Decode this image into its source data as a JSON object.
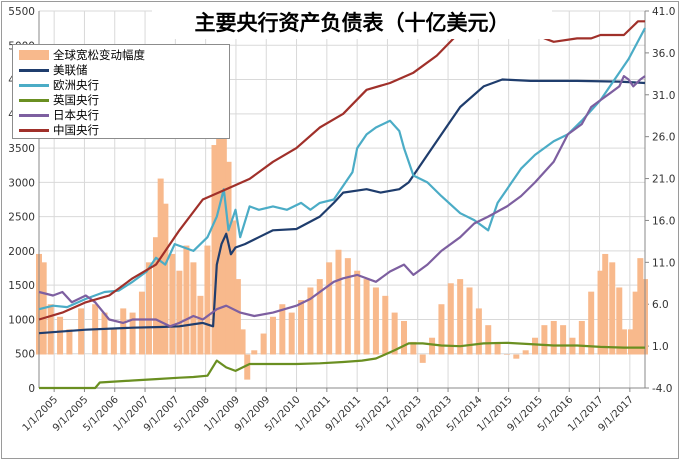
{
  "title": "主要央行资产负债表（十亿美元）",
  "chart_data": {
    "type": "line",
    "left_axis": {
      "min": 0,
      "max": 5500,
      "ticks": [
        0,
        500,
        1000,
        1500,
        2000,
        2500,
        3000,
        3500,
        4000,
        4500,
        5000,
        5500
      ]
    },
    "right_axis": {
      "min": -4.0,
      "max": 41.0,
      "ticks": [
        "-4.0",
        "1.0",
        "6.0",
        "11.0",
        "16.0",
        "21.0",
        "26.0",
        "31.0",
        "36.0",
        "41.0"
      ]
    },
    "x_ticks": [
      "1/1/2005",
      "9/1/2005",
      "5/1/2006",
      "1/1/2007",
      "9/1/2007",
      "5/1/2008",
      "1/1/2009",
      "9/1/2009",
      "5/1/2010",
      "1/1/2011",
      "9/1/2011",
      "5/1/2012",
      "1/1/2013",
      "9/1/2013",
      "5/1/2014",
      "1/1/2015",
      "9/1/2015",
      "5/1/2016",
      "1/1/2017",
      "9/1/2017"
    ],
    "x_range": [
      2005.0,
      2017.95
    ],
    "grid": true,
    "legend_position": "top-left",
    "legend": [
      {
        "name": "全球宽松变动幅度",
        "kind": "bar",
        "color": "#f8b98c"
      },
      {
        "name": "美联储",
        "kind": "line",
        "color": "#1f3d6d"
      },
      {
        "name": "欧洲央行",
        "kind": "line",
        "color": "#4bacc6"
      },
      {
        "name": "英国央行",
        "kind": "line",
        "color": "#6a8f21"
      },
      {
        "name": "日本央行",
        "kind": "line",
        "color": "#7d5fa0"
      },
      {
        "name": "中国央行",
        "kind": "line",
        "color": "#a0302a"
      }
    ],
    "bar_series": {
      "name": "全球宽松变动幅度",
      "axis": "right",
      "points": [
        [
          2005.0,
          12.0
        ],
        [
          2005.1,
          11.0
        ],
        [
          2005.25,
          6.0
        ],
        [
          2005.45,
          4.5
        ],
        [
          2005.65,
          3.0
        ],
        [
          2005.9,
          5.5
        ],
        [
          2006.2,
          6.0
        ],
        [
          2006.4,
          5.0
        ],
        [
          2006.6,
          3.0
        ],
        [
          2006.8,
          5.5
        ],
        [
          2007.0,
          5.0
        ],
        [
          2007.2,
          7.5
        ],
        [
          2007.35,
          11.0
        ],
        [
          2007.5,
          14.0
        ],
        [
          2007.6,
          21.0
        ],
        [
          2007.7,
          18.0
        ],
        [
          2007.85,
          12.0
        ],
        [
          2008.0,
          10.0
        ],
        [
          2008.15,
          13.0
        ],
        [
          2008.3,
          11.0
        ],
        [
          2008.45,
          7.0
        ],
        [
          2008.6,
          13.0
        ],
        [
          2008.75,
          25.0
        ],
        [
          2008.85,
          32.0
        ],
        [
          2008.95,
          27.5
        ],
        [
          2009.05,
          23.0
        ],
        [
          2009.15,
          16.0
        ],
        [
          2009.25,
          9.0
        ],
        [
          2009.35,
          3.0
        ],
        [
          2009.45,
          -3.0
        ],
        [
          2009.6,
          0.5
        ],
        [
          2009.8,
          2.5
        ],
        [
          2010.0,
          4.5
        ],
        [
          2010.2,
          6.0
        ],
        [
          2010.4,
          5.0
        ],
        [
          2010.6,
          6.5
        ],
        [
          2010.8,
          8.0
        ],
        [
          2011.0,
          9.0
        ],
        [
          2011.2,
          11.0
        ],
        [
          2011.4,
          12.5
        ],
        [
          2011.6,
          11.5
        ],
        [
          2011.8,
          10.0
        ],
        [
          2012.0,
          9.0
        ],
        [
          2012.2,
          8.0
        ],
        [
          2012.4,
          7.0
        ],
        [
          2012.6,
          5.0
        ],
        [
          2012.8,
          4.0
        ],
        [
          2013.0,
          1.5
        ],
        [
          2013.2,
          -1.0
        ],
        [
          2013.4,
          2.0
        ],
        [
          2013.6,
          6.0
        ],
        [
          2013.8,
          8.5
        ],
        [
          2014.0,
          9.0
        ],
        [
          2014.2,
          8.0
        ],
        [
          2014.4,
          5.5
        ],
        [
          2014.6,
          3.5
        ],
        [
          2014.8,
          1.5
        ],
        [
          2015.0,
          0.0
        ],
        [
          2015.2,
          -0.5
        ],
        [
          2015.4,
          0.5
        ],
        [
          2015.6,
          2.0
        ],
        [
          2015.8,
          3.5
        ],
        [
          2016.0,
          4.0
        ],
        [
          2016.2,
          3.5
        ],
        [
          2016.4,
          2.0
        ],
        [
          2016.6,
          4.0
        ],
        [
          2016.8,
          7.5
        ],
        [
          2017.0,
          10.0
        ],
        [
          2017.1,
          12.0
        ],
        [
          2017.25,
          11.0
        ],
        [
          2017.4,
          8.0
        ],
        [
          2017.5,
          3.0
        ],
        [
          2017.65,
          3.0
        ],
        [
          2017.75,
          7.5
        ],
        [
          2017.85,
          11.5
        ],
        [
          2017.95,
          9.0
        ]
      ]
    },
    "series": [
      {
        "name": "美联储",
        "axis": "left",
        "color": "#1f3d6d",
        "points": [
          [
            2005.0,
            800
          ],
          [
            2006.0,
            850
          ],
          [
            2007.0,
            880
          ],
          [
            2007.6,
            890
          ],
          [
            2008.0,
            900
          ],
          [
            2008.5,
            950
          ],
          [
            2008.72,
            900
          ],
          [
            2008.8,
            1800
          ],
          [
            2008.9,
            2100
          ],
          [
            2009.0,
            2250
          ],
          [
            2009.1,
            1950
          ],
          [
            2009.2,
            2050
          ],
          [
            2009.4,
            2100
          ],
          [
            2009.7,
            2200
          ],
          [
            2010.0,
            2300
          ],
          [
            2010.5,
            2320
          ],
          [
            2011.0,
            2500
          ],
          [
            2011.3,
            2700
          ],
          [
            2011.5,
            2850
          ],
          [
            2012.0,
            2900
          ],
          [
            2012.3,
            2850
          ],
          [
            2012.7,
            2900
          ],
          [
            2012.9,
            3000
          ],
          [
            2013.3,
            3400
          ],
          [
            2013.7,
            3800
          ],
          [
            2014.0,
            4100
          ],
          [
            2014.5,
            4400
          ],
          [
            2014.9,
            4500
          ],
          [
            2015.5,
            4480
          ],
          [
            2016.5,
            4480
          ],
          [
            2017.4,
            4470
          ],
          [
            2017.95,
            4450
          ]
        ]
      },
      {
        "name": "欧洲央行",
        "axis": "left",
        "color": "#4bacc6",
        "points": [
          [
            2005.0,
            1150
          ],
          [
            2005.3,
            1200
          ],
          [
            2005.6,
            1180
          ],
          [
            2006.0,
            1300
          ],
          [
            2006.4,
            1400
          ],
          [
            2006.7,
            1420
          ],
          [
            2007.0,
            1550
          ],
          [
            2007.3,
            1700
          ],
          [
            2007.5,
            1900
          ],
          [
            2007.7,
            1800
          ],
          [
            2007.9,
            2100
          ],
          [
            2008.1,
            2050
          ],
          [
            2008.3,
            2000
          ],
          [
            2008.6,
            2200
          ],
          [
            2008.8,
            2500
          ],
          [
            2008.95,
            2900
          ],
          [
            2009.05,
            2300
          ],
          [
            2009.2,
            2600
          ],
          [
            2009.3,
            2200
          ],
          [
            2009.5,
            2650
          ],
          [
            2009.7,
            2600
          ],
          [
            2010.0,
            2650
          ],
          [
            2010.3,
            2600
          ],
          [
            2010.6,
            2700
          ],
          [
            2010.8,
            2600
          ],
          [
            2011.0,
            2700
          ],
          [
            2011.3,
            2750
          ],
          [
            2011.5,
            2950
          ],
          [
            2011.7,
            3150
          ],
          [
            2011.8,
            3500
          ],
          [
            2011.9,
            3600
          ],
          [
            2012.0,
            3700
          ],
          [
            2012.2,
            3800
          ],
          [
            2012.5,
            3900
          ],
          [
            2012.7,
            3750
          ],
          [
            2012.8,
            3500
          ],
          [
            2013.0,
            3100
          ],
          [
            2013.3,
            3000
          ],
          [
            2013.6,
            2800
          ],
          [
            2014.0,
            2550
          ],
          [
            2014.3,
            2450
          ],
          [
            2014.6,
            2300
          ],
          [
            2014.8,
            2700
          ],
          [
            2015.0,
            2900
          ],
          [
            2015.3,
            3200
          ],
          [
            2015.6,
            3400
          ],
          [
            2016.0,
            3600
          ],
          [
            2016.3,
            3700
          ],
          [
            2016.6,
            3900
          ],
          [
            2017.0,
            4200
          ],
          [
            2017.3,
            4500
          ],
          [
            2017.6,
            4800
          ],
          [
            2017.95,
            5250
          ]
        ]
      },
      {
        "name": "英国央行",
        "axis": "left",
        "color": "#6a8f21",
        "points": [
          [
            2005.0,
            0
          ],
          [
            2005.5,
            0
          ],
          [
            2006.2,
            0
          ],
          [
            2006.3,
            80
          ],
          [
            2007.0,
            110
          ],
          [
            2007.5,
            130
          ],
          [
            2008.0,
            150
          ],
          [
            2008.3,
            160
          ],
          [
            2008.6,
            180
          ],
          [
            2008.8,
            400
          ],
          [
            2009.0,
            300
          ],
          [
            2009.2,
            250
          ],
          [
            2009.5,
            350
          ],
          [
            2010.0,
            350
          ],
          [
            2010.5,
            350
          ],
          [
            2011.0,
            360
          ],
          [
            2011.5,
            380
          ],
          [
            2011.9,
            400
          ],
          [
            2012.2,
            430
          ],
          [
            2012.6,
            550
          ],
          [
            2012.9,
            650
          ],
          [
            2013.2,
            650
          ],
          [
            2013.6,
            620
          ],
          [
            2014.0,
            610
          ],
          [
            2014.5,
            650
          ],
          [
            2015.0,
            660
          ],
          [
            2015.5,
            640
          ],
          [
            2016.0,
            620
          ],
          [
            2016.5,
            620
          ],
          [
            2017.0,
            600
          ],
          [
            2017.5,
            590
          ],
          [
            2017.95,
            590
          ]
        ]
      },
      {
        "name": "日本央行",
        "axis": "left",
        "color": "#7d5fa0",
        "points": [
          [
            2005.0,
            1400
          ],
          [
            2005.3,
            1350
          ],
          [
            2005.5,
            1400
          ],
          [
            2005.7,
            1250
          ],
          [
            2006.0,
            1350
          ],
          [
            2006.2,
            1250
          ],
          [
            2006.5,
            1000
          ],
          [
            2006.8,
            950
          ],
          [
            2007.0,
            1000
          ],
          [
            2007.5,
            1000
          ],
          [
            2007.8,
            900
          ],
          [
            2008.0,
            950
          ],
          [
            2008.3,
            1050
          ],
          [
            2008.5,
            1000
          ],
          [
            2008.8,
            1150
          ],
          [
            2009.0,
            1200
          ],
          [
            2009.3,
            1100
          ],
          [
            2009.6,
            1050
          ],
          [
            2010.0,
            1100
          ],
          [
            2010.5,
            1200
          ],
          [
            2010.8,
            1300
          ],
          [
            2011.0,
            1400
          ],
          [
            2011.3,
            1550
          ],
          [
            2011.5,
            1600
          ],
          [
            2011.8,
            1650
          ],
          [
            2012.2,
            1550
          ],
          [
            2012.5,
            1700
          ],
          [
            2012.8,
            1800
          ],
          [
            2013.0,
            1650
          ],
          [
            2013.3,
            1800
          ],
          [
            2013.6,
            2000
          ],
          [
            2014.0,
            2200
          ],
          [
            2014.3,
            2400
          ],
          [
            2014.6,
            2500
          ],
          [
            2015.0,
            2650
          ],
          [
            2015.3,
            2800
          ],
          [
            2015.6,
            3000
          ],
          [
            2016.0,
            3300
          ],
          [
            2016.3,
            3700
          ],
          [
            2016.6,
            3850
          ],
          [
            2016.8,
            4100
          ],
          [
            2017.0,
            4200
          ],
          [
            2017.2,
            4300
          ],
          [
            2017.4,
            4400
          ],
          [
            2017.5,
            4550
          ],
          [
            2017.6,
            4500
          ],
          [
            2017.7,
            4400
          ],
          [
            2017.85,
            4500
          ],
          [
            2017.95,
            4550
          ]
        ]
      },
      {
        "name": "中国央行",
        "axis": "left",
        "color": "#a0302a",
        "points": [
          [
            2005.0,
            1000
          ],
          [
            2005.5,
            1100
          ],
          [
            2006.0,
            1250
          ],
          [
            2006.5,
            1350
          ],
          [
            2007.0,
            1600
          ],
          [
            2007.5,
            1800
          ],
          [
            2008.0,
            2300
          ],
          [
            2008.5,
            2750
          ],
          [
            2009.0,
            2900
          ],
          [
            2009.5,
            3050
          ],
          [
            2010.0,
            3300
          ],
          [
            2010.5,
            3500
          ],
          [
            2011.0,
            3800
          ],
          [
            2011.5,
            4000
          ],
          [
            2012.0,
            4350
          ],
          [
            2012.5,
            4450
          ],
          [
            2013.0,
            4600
          ],
          [
            2013.5,
            4850
          ],
          [
            2014.0,
            5200
          ],
          [
            2014.5,
            5500
          ],
          [
            2015.0,
            5450
          ],
          [
            2015.5,
            5250
          ],
          [
            2015.8,
            5100
          ],
          [
            2016.0,
            5050
          ],
          [
            2016.5,
            5100
          ],
          [
            2016.8,
            5100
          ],
          [
            2017.0,
            5150
          ],
          [
            2017.5,
            5150
          ],
          [
            2017.8,
            5350
          ],
          [
            2017.95,
            5350
          ]
        ]
      }
    ]
  }
}
